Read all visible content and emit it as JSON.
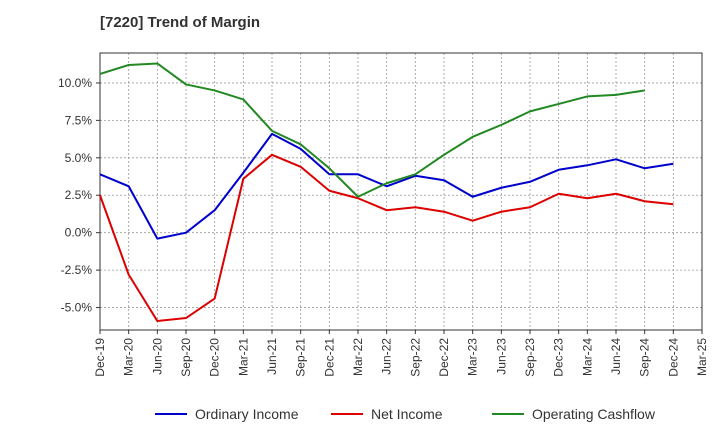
{
  "chart_data": {
    "type": "line",
    "title": "[7220]  Trend of Margin",
    "xlabel": "",
    "ylabel": "",
    "x": [
      "Dec-19",
      "Mar-20",
      "Jun-20",
      "Sep-20",
      "Dec-20",
      "Mar-21",
      "Jun-21",
      "Sep-21",
      "Dec-21",
      "Mar-22",
      "Jun-22",
      "Sep-22",
      "Dec-22",
      "Mar-23",
      "Jun-23",
      "Sep-23",
      "Dec-23",
      "Mar-24",
      "Jun-24",
      "Sep-24",
      "Dec-24",
      "Mar-25"
    ],
    "ylim": [
      -6.5,
      12.0
    ],
    "yticks": [
      -5.0,
      -2.5,
      0.0,
      2.5,
      5.0,
      7.5,
      10.0
    ],
    "ytick_labels": [
      "-5.0%",
      "-2.5%",
      "0.0%",
      "2.5%",
      "5.0%",
      "7.5%",
      "10.0%"
    ],
    "grid": true,
    "legend_position": "bottom",
    "series": [
      {
        "name": "Ordinary Income",
        "color": "#0000cc",
        "values": [
          3.9,
          3.1,
          -0.4,
          0.0,
          1.5,
          4.0,
          6.6,
          5.6,
          3.9,
          3.9,
          3.1,
          3.8,
          3.5,
          2.4,
          3.0,
          3.4,
          4.2,
          4.5,
          4.9,
          4.3,
          4.6,
          null
        ]
      },
      {
        "name": "Net Income",
        "color": "#dd0000",
        "values": [
          2.5,
          -2.8,
          -5.9,
          -5.7,
          -4.4,
          3.6,
          5.2,
          4.4,
          2.8,
          2.3,
          1.5,
          1.7,
          1.4,
          0.8,
          1.4,
          1.7,
          2.6,
          2.3,
          2.6,
          2.1,
          1.9,
          null
        ]
      },
      {
        "name": "Operating Cashflow",
        "color": "#228822",
        "values": [
          10.6,
          11.2,
          11.3,
          9.9,
          9.5,
          8.9,
          6.8,
          5.9,
          4.3,
          2.4,
          3.3,
          3.9,
          5.2,
          6.4,
          7.2,
          8.1,
          8.6,
          9.1,
          9.2,
          9.5,
          null,
          null
        ]
      }
    ]
  }
}
